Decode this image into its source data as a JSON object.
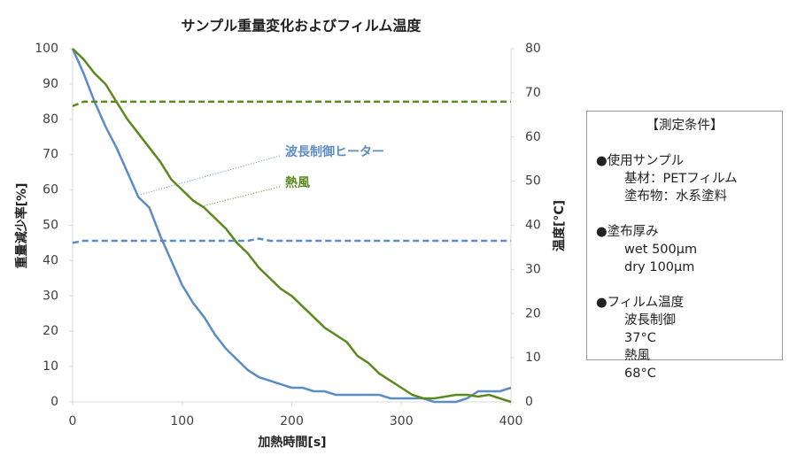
{
  "chart_data": {
    "type": "line",
    "title": "サンプル重量変化およびフィルム温度",
    "x_label": "加熱時間[s]",
    "y_label": "重量減少率[%]",
    "y2_label": "温度[°C]",
    "x": [
      0,
      10,
      20,
      30,
      40,
      50,
      60,
      70,
      80,
      90,
      100,
      110,
      120,
      130,
      140,
      150,
      160,
      170,
      180,
      190,
      200,
      210,
      220,
      230,
      240,
      250,
      260,
      270,
      280,
      290,
      300,
      310,
      320,
      330,
      340,
      350,
      360,
      370,
      380,
      390,
      400
    ],
    "series": [
      {
        "name": "波長制御ヒーター",
        "color": "#5b8cc4",
        "dash": false,
        "values": [
          100,
          93,
          85,
          78,
          72,
          65,
          58,
          55,
          47,
          40,
          33,
          28,
          24,
          19,
          15,
          12,
          9,
          7,
          6,
          5,
          4,
          4,
          3,
          3,
          2,
          2,
          2,
          2,
          2,
          1,
          1,
          1,
          1,
          0,
          0,
          0,
          1,
          3,
          3,
          3,
          4
        ]
      },
      {
        "name": "熱風",
        "color": "#5a8a1e",
        "dash": false,
        "values": [
          100,
          97,
          93,
          90,
          85,
          80,
          76,
          72,
          68,
          63,
          60,
          57,
          55,
          52,
          49,
          45,
          42,
          38,
          35,
          32,
          30,
          27,
          24,
          21,
          19,
          17,
          13,
          11,
          8,
          6,
          4,
          2,
          1,
          1,
          1.5,
          2,
          2,
          1.5,
          2,
          1,
          0
        ]
      },
      {
        "color": "#5b8cc4",
        "dash": true,
        "axis": "y2",
        "values": [
          36,
          36.5,
          36.5,
          36.5,
          36.5,
          36.5,
          36.5,
          36.5,
          36.5,
          36.5,
          36.5,
          36.5,
          36.5,
          36.5,
          36.5,
          36.5,
          36.5,
          37,
          36.5,
          36.5,
          36.5,
          36.5,
          36.5,
          36.5,
          36.5,
          36.5,
          36.5,
          36.5,
          36.5,
          36.5,
          36.5,
          36.5,
          36.5,
          36.5,
          36.5,
          36.5,
          36.5,
          36.5,
          36.5,
          36.5,
          36.5
        ]
      },
      {
        "color": "#5a8a1e",
        "dash": true,
        "axis": "y2",
        "values": [
          67,
          68,
          68,
          68,
          68,
          68,
          68,
          68,
          68,
          68,
          68,
          68,
          68,
          68,
          68,
          68,
          68,
          68,
          68,
          68,
          68,
          68,
          68,
          68,
          68,
          68,
          68,
          68,
          68,
          68,
          68,
          68,
          68,
          68,
          68,
          68,
          68,
          68,
          68,
          68,
          68
        ]
      }
    ],
    "annotations": [
      "波長制御ヒーター",
      "熱風"
    ],
    "xlim": [
      0,
      400
    ],
    "xticks": [
      0,
      100,
      200,
      300,
      400
    ],
    "ylim": [
      0,
      100
    ],
    "yticks": [
      0,
      10,
      20,
      30,
      40,
      50,
      60,
      70,
      80,
      90,
      100
    ],
    "y2lim": [
      0,
      80
    ],
    "y2ticks": [
      0,
      10,
      20,
      30,
      40,
      50,
      60,
      70,
      80
    ]
  },
  "conditions": {
    "title": "【測定条件】",
    "sections": [
      {
        "heading": "●使用サンプル",
        "items": [
          "基材：PETフィルム",
          "塗布物：水系塗料"
        ]
      },
      {
        "heading": "●塗布厚み",
        "items": [
          "wet 500μm",
          "dry 100μm"
        ]
      },
      {
        "heading": "●フィルム温度",
        "items": [
          {
            "label": "波長制御",
            "value": "37°C"
          },
          {
            "label": "熱風",
            "value": "68°C"
          }
        ]
      }
    ]
  }
}
